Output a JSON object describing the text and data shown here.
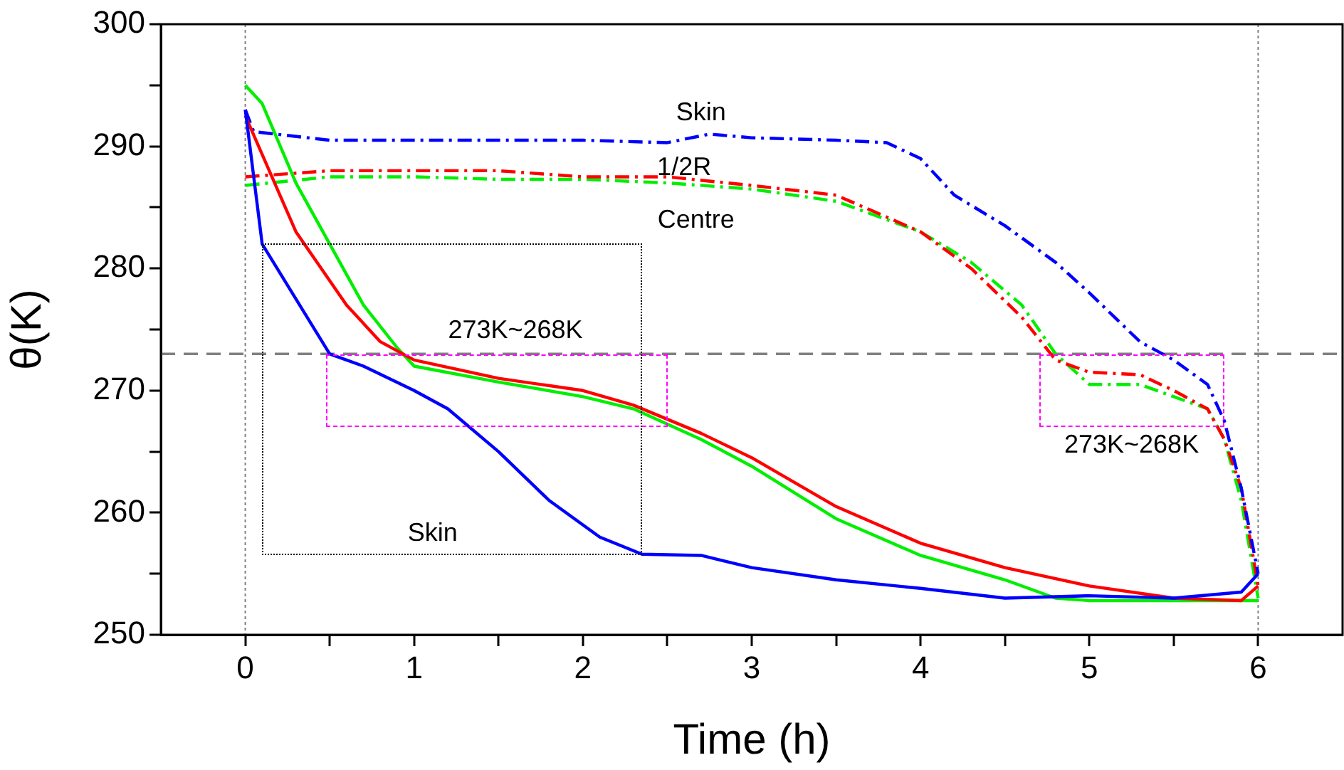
{
  "chart_data": {
    "type": "line",
    "xlabel": "Time (h)",
    "ylabel": "θ(K)",
    "xlim": [
      -0.5,
      6.5
    ],
    "ylim": [
      250,
      300
    ],
    "xticks": [
      0,
      {
        "value": 0.5,
        "label": null
      },
      1,
      {
        "value": 1.5,
        "label": null
      },
      2,
      {
        "value": 2.5,
        "label": null
      },
      3,
      {
        "value": 3.5,
        "label": null
      },
      4,
      {
        "value": 4.5,
        "label": null
      },
      5,
      {
        "value": 5.5,
        "label": null
      },
      6
    ],
    "yticks": [
      250,
      {
        "value": 255,
        "label": null
      },
      260,
      {
        "value": 265,
        "label": null
      },
      270,
      {
        "value": 275,
        "label": null
      },
      280,
      {
        "value": 285,
        "label": null
      },
      290,
      {
        "value": 295,
        "label": null
      },
      300
    ],
    "grid": false,
    "legend": false,
    "marker": "none",
    "series": [
      {
        "color": "#0000ff",
        "line_style": "solid",
        "x": [
          0,
          0.1,
          0.5,
          0.7,
          1,
          1.2,
          1.5,
          1.8,
          2.1,
          2.35,
          2.7,
          3,
          3.5,
          4,
          4.5,
          5,
          5.5,
          5.9,
          6
        ],
        "values": [
          293,
          282,
          273,
          272,
          270,
          268.5,
          265,
          261,
          258,
          256.6,
          256.5,
          255.5,
          254.5,
          253.8,
          253,
          253.2,
          253,
          253.5,
          255
        ]
      },
      {
        "color": "#ff0000",
        "line_style": "solid",
        "x": [
          0,
          0.3,
          0.6,
          0.8,
          1,
          1.5,
          2,
          2.3,
          2.7,
          3,
          3.5,
          4,
          4.5,
          5,
          5.5,
          5.9,
          6
        ],
        "values": [
          292.5,
          283,
          277,
          274,
          272.5,
          271,
          270,
          268.8,
          266.5,
          264.5,
          260.5,
          257.5,
          255.5,
          254,
          253,
          252.8,
          254
        ]
      },
      {
        "color": "#00ee00",
        "line_style": "solid",
        "x": [
          0,
          0.1,
          0.3,
          0.5,
          0.7,
          0.9,
          1,
          1.5,
          2,
          2.3,
          2.7,
          3,
          3.5,
          4,
          4.5,
          4.8,
          5,
          5.5,
          5.9,
          6
        ],
        "values": [
          295,
          293.5,
          287,
          282,
          277,
          273.5,
          272,
          270.7,
          269.5,
          268.5,
          266,
          263.8,
          259.5,
          256.5,
          254.5,
          253,
          252.8,
          252.8,
          252.8,
          252.8
        ]
      },
      {
        "color": "#0000ff",
        "line_style": "dashed",
        "x": [
          0,
          0.05,
          0.5,
          1,
          1.5,
          2,
          2.5,
          2.75,
          3,
          3.5,
          3.8,
          4,
          4.2,
          4.5,
          4.8,
          5,
          5.3,
          5.5,
          5.7,
          5.8,
          5.9,
          6
        ],
        "values": [
          293,
          291.2,
          290.5,
          290.5,
          290.5,
          290.5,
          290.3,
          291,
          290.7,
          290.5,
          290.3,
          289,
          286,
          283.5,
          280.5,
          278,
          274,
          272.5,
          270.5,
          267.5,
          262,
          255
        ]
      },
      {
        "color": "#ff0000",
        "line_style": "dashed",
        "x": [
          0,
          0.5,
          1,
          1.5,
          2,
          2.5,
          3,
          3.5,
          4,
          4.3,
          4.6,
          4.8,
          5,
          5.3,
          5.5,
          5.7,
          5.8,
          5.9,
          6
        ],
        "values": [
          287.5,
          288,
          288,
          288,
          287.5,
          287.5,
          286.8,
          286,
          283,
          280,
          276,
          272.5,
          271.5,
          271.3,
          270,
          268.5,
          266,
          262,
          254
        ]
      },
      {
        "color": "#00ee00",
        "line_style": "dashed",
        "x": [
          0,
          0.5,
          1,
          1.5,
          2,
          2.5,
          3,
          3.5,
          4,
          4.3,
          4.6,
          4.8,
          5,
          5.3,
          5.5,
          5.7,
          5.8,
          5.9,
          6
        ],
        "values": [
          286.8,
          287.5,
          287.5,
          287.3,
          287.3,
          287,
          286.5,
          285.5,
          283,
          280.5,
          277,
          273,
          270.5,
          270.5,
          269.5,
          268.5,
          266,
          261,
          253
        ]
      }
    ],
    "ref_lines": [
      {
        "axis": "y",
        "value": 273,
        "color": "#808080",
        "line_style": "dashed"
      },
      {
        "axis": "x",
        "value": 0,
        "color": "#808080",
        "line_style": "dotted"
      },
      {
        "axis": "x",
        "value": 6,
        "color": "#808080",
        "line_style": "dotted"
      }
    ],
    "annotations": [
      "Skin",
      "1/2R",
      "Centre",
      "273K~268K",
      "273K~268K",
      "Skin"
    ]
  }
}
